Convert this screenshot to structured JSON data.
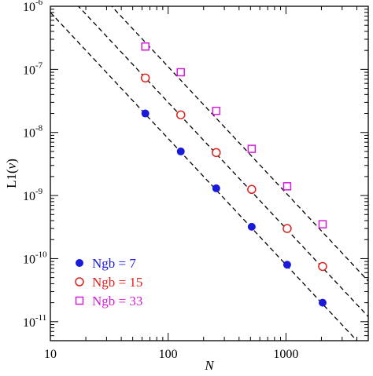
{
  "chart_data": {
    "type": "scatter",
    "title": "",
    "xlabel": "N",
    "ylabel_prefix": "L1(",
    "ylabel_var": "v",
    "ylabel_suffix": ")",
    "x_scale": "log",
    "y_scale": "log",
    "xlim": [
      10,
      5000
    ],
    "ylim": [
      5e-12,
      1e-06
    ],
    "x_ticks": [
      {
        "value": 10,
        "label": "10"
      },
      {
        "value": 100,
        "label": "100"
      },
      {
        "value": 1000,
        "label": "1000"
      }
    ],
    "y_ticks": [
      {
        "value": 1e-11,
        "base": "10",
        "exp": "-11"
      },
      {
        "value": 1e-10,
        "base": "10",
        "exp": "-10"
      },
      {
        "value": 1e-09,
        "base": "10",
        "exp": "-9"
      },
      {
        "value": 1e-08,
        "base": "10",
        "exp": "-8"
      },
      {
        "value": 1e-07,
        "base": "10",
        "exp": "-7"
      },
      {
        "value": 1e-06,
        "base": "10",
        "exp": "-6"
      }
    ],
    "grid": false,
    "legend_position": "bottom-left",
    "series": [
      {
        "name": "Ngb = 7",
        "marker": "filled-circle",
        "color": "#1a1adb",
        "x": [
          64,
          128,
          256,
          512,
          1024,
          2048
        ],
        "y": [
          2e-08,
          5e-09,
          1.3e-09,
          3.2e-10,
          8e-11,
          2e-11
        ],
        "fit": {
          "x0": 10,
          "y0": 8e-07,
          "slope": -2
        }
      },
      {
        "name": "Ngb = 15",
        "marker": "open-circle",
        "color": "#e0201c",
        "x": [
          64,
          128,
          256,
          512,
          1024,
          2048
        ],
        "y": [
          7.3e-08,
          1.9e-08,
          4.8e-09,
          1.25e-09,
          3e-10,
          7.5e-11
        ],
        "fit": {
          "x0": 10,
          "y0": 3e-06,
          "slope": -2
        }
      },
      {
        "name": "Ngb = 33",
        "marker": "open-square",
        "color": "#d61cd6",
        "x": [
          64,
          128,
          256,
          512,
          1024,
          2048
        ],
        "y": [
          2.3e-07,
          9e-08,
          2.2e-08,
          5.5e-09,
          1.4e-09,
          3.5e-10
        ],
        "fit": {
          "x0": 10,
          "y0": 1.1e-05,
          "slope": -2
        }
      }
    ]
  }
}
